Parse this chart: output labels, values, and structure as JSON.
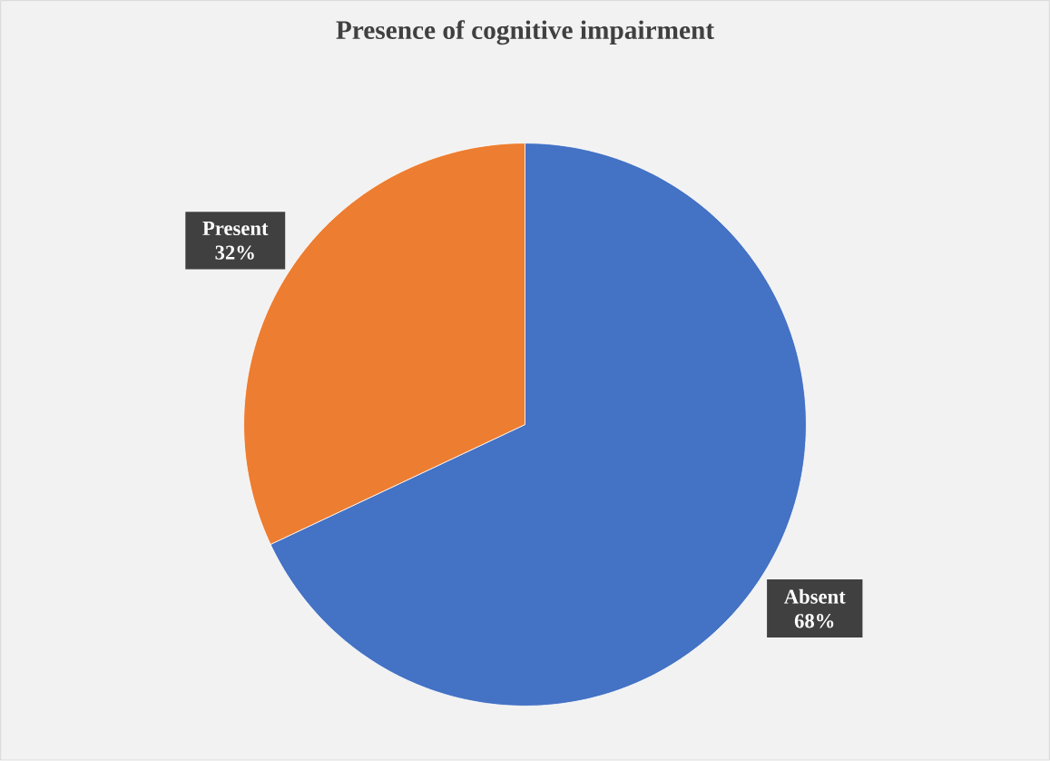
{
  "chart_data": {
    "type": "pie",
    "title": "Presence of cognitive impairment",
    "categories": [
      "Absent",
      "Present"
    ],
    "values": [
      68,
      32
    ],
    "colors": [
      "#4472c4",
      "#ed7d31"
    ],
    "value_labels": [
      "68%",
      "32%"
    ]
  }
}
